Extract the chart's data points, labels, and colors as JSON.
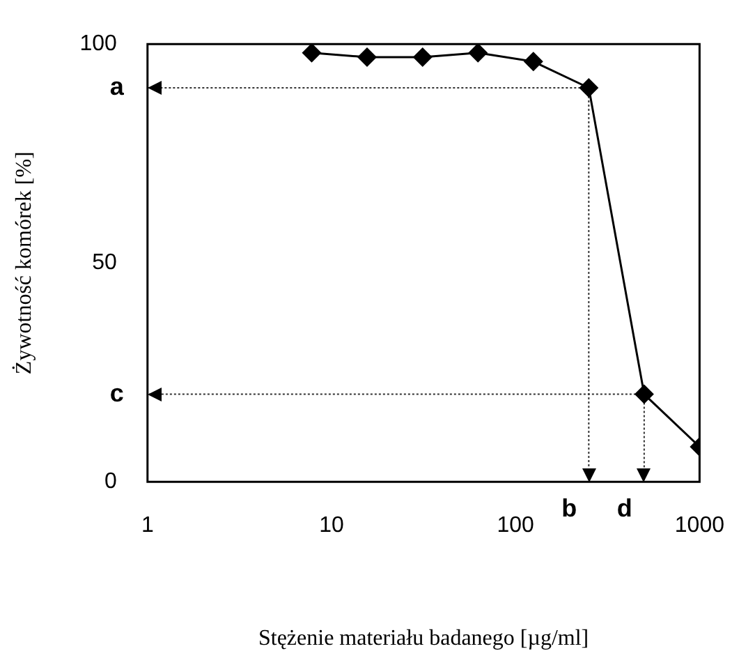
{
  "chart_data": {
    "type": "line",
    "xlabel": "Stężenie materiału badanego [µg/ml]",
    "ylabel": "Żywotność komórek [%]",
    "x": [
      7.8,
      15.6,
      31.25,
      62.5,
      125,
      250,
      500,
      1000
    ],
    "series": [
      {
        "color": "#000000",
        "values": [
          98,
          97,
          97,
          98,
          96,
          90,
          20,
          8
        ]
      }
    ],
    "log": "x",
    "xlim": [
      1,
      1000
    ],
    "xticks": [
      1,
      10,
      100,
      1000
    ],
    "ylim": [
      0,
      100
    ],
    "yticks": [
      0,
      50,
      100
    ],
    "grid": false,
    "legend": false,
    "marker": "diamond",
    "line_style": "solid",
    "ref_lines": [
      {
        "axis": "y",
        "value": 90,
        "label": "a",
        "color": "#333333",
        "line_style": "dotted"
      },
      {
        "axis": "x",
        "value": 250,
        "label": "b",
        "color": "#333333",
        "line_style": "dotted"
      },
      {
        "axis": "y",
        "value": 20,
        "label": "c",
        "color": "#333333",
        "line_style": "dotted"
      },
      {
        "axis": "x",
        "value": 500,
        "label": "d",
        "color": "#333333",
        "line_style": "dotted"
      }
    ]
  }
}
